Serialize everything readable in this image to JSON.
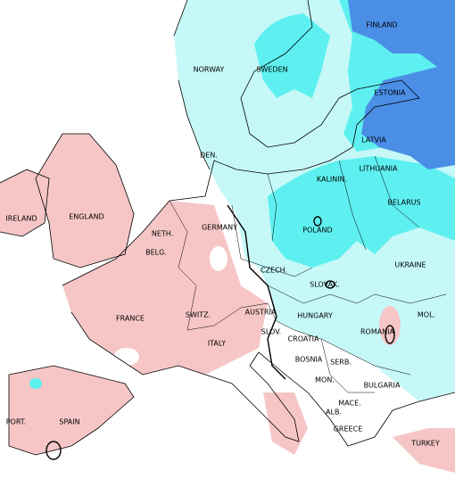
{
  "labels": [
    "FINLAND",
    "NORWAY",
    "SWEDEN",
    "ESTONIA",
    "LATVIA",
    "DEN.",
    "LITHUANIA",
    "KALININ.",
    "IRELAND",
    "ENGLAND",
    "BELARUS",
    "NETH.",
    "GERMANY",
    "POLAND",
    "BELG.",
    "UKRAINE",
    "CZECH.",
    "SLOVAK.",
    "FRANCE",
    "SWITZ.",
    "AUSTRIA",
    "HUNGARY",
    "MOL.",
    "ROMANIA",
    "SLOV.",
    "CROATIA",
    "ITALY",
    "BOSNIA",
    "SERB.",
    "MON.",
    "BULGARIA",
    "MACE.",
    "PORT.",
    "SPAIN",
    "ALB.",
    "GREECE",
    "TURKEY"
  ]
}
